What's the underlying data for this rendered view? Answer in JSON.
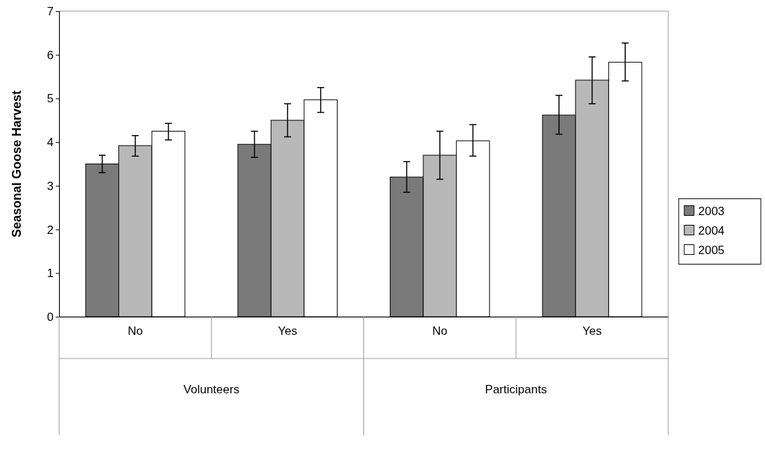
{
  "chart_data": {
    "type": "bar",
    "ylabel": "Seasonal Goose Harvest",
    "categories": [
      "No",
      "Yes",
      "No",
      "Yes"
    ],
    "annotations": [
      "Volunteers",
      "Participants"
    ],
    "ylim": [
      0,
      7
    ],
    "yticks": [
      0,
      1,
      2,
      3,
      4,
      5,
      6,
      7
    ],
    "grid": false,
    "legend": "right",
    "series": [
      {
        "name": "2003",
        "color": "#7a7a7a",
        "values": [
          3.5,
          3.95,
          3.2,
          4.62
        ],
        "errors": [
          [
            3.3,
            3.7
          ],
          [
            3.65,
            4.25
          ],
          [
            2.85,
            3.55
          ],
          [
            4.18,
            5.07
          ]
        ]
      },
      {
        "name": "2004",
        "color": "#b8b8b8",
        "values": [
          3.92,
          4.5,
          3.7,
          5.42
        ],
        "errors": [
          [
            3.68,
            4.15
          ],
          [
            4.12,
            4.88
          ],
          [
            3.15,
            4.25
          ],
          [
            4.88,
            5.95
          ]
        ]
      },
      {
        "name": "2005",
        "color": "#ffffff",
        "values": [
          4.25,
          4.97,
          4.03,
          5.83
        ],
        "errors": [
          [
            4.05,
            4.43
          ],
          [
            4.68,
            5.25
          ],
          [
            3.68,
            4.4
          ],
          [
            5.4,
            6.27
          ]
        ]
      }
    ]
  }
}
